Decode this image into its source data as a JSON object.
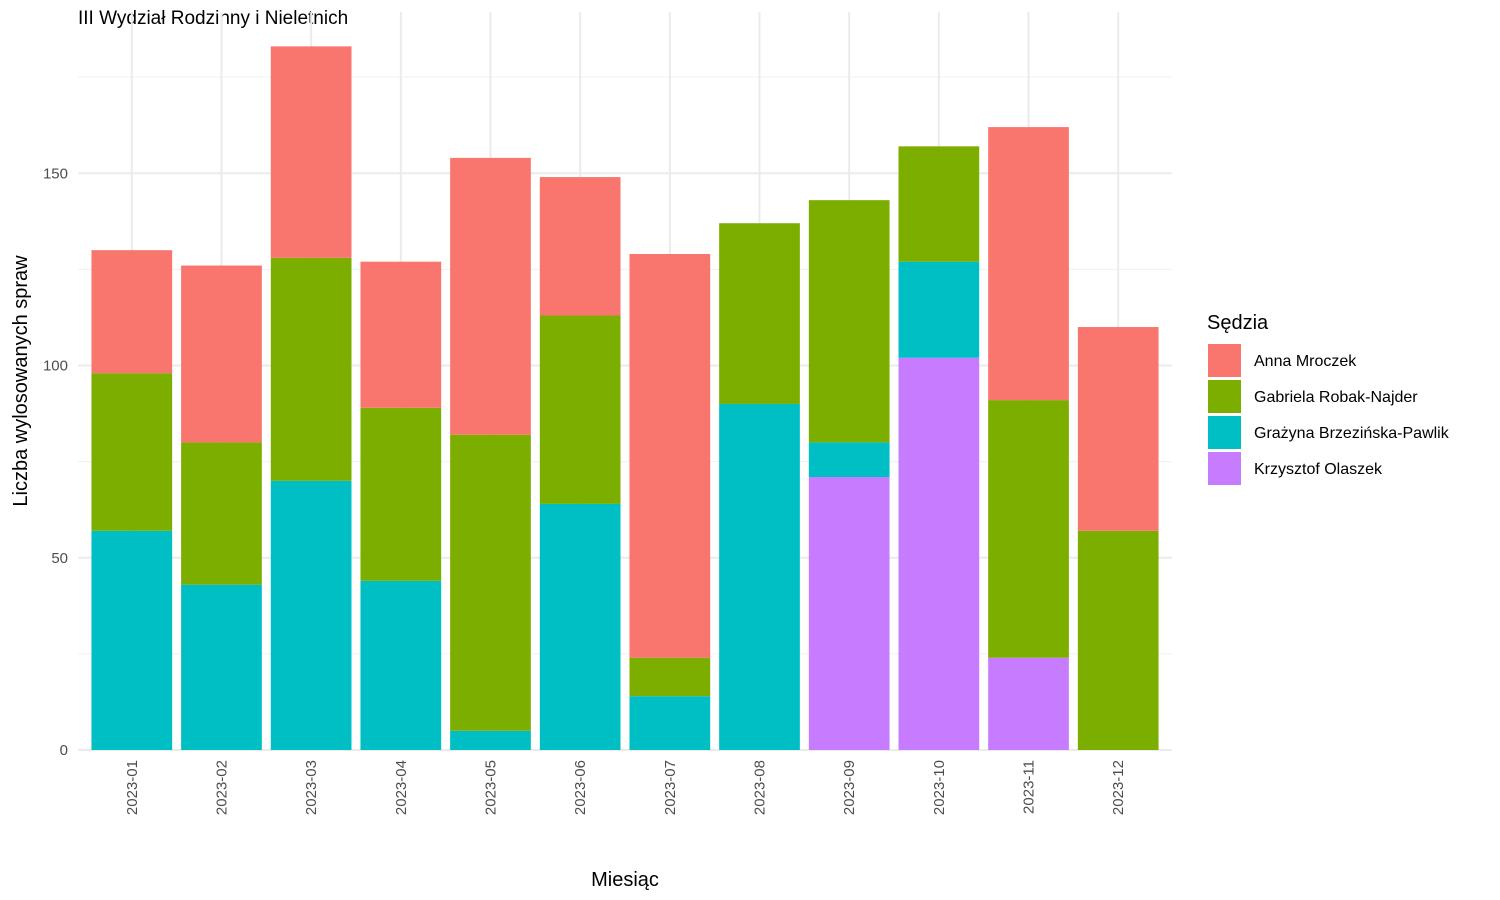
{
  "chart_data": {
    "type": "bar",
    "stacked": true,
    "title": "III Wydział Rodzinny i Nieletnich",
    "xlabel": "Miesiąc",
    "ylabel": "Liczba wylosowanych spraw",
    "ylim": [
      0,
      190
    ],
    "yticks": [
      "0",
      "50",
      "100",
      "150"
    ],
    "categories": [
      "2023-01",
      "2023-02",
      "2023-03",
      "2023-04",
      "2023-05",
      "2023-06",
      "2023-07",
      "2023-08",
      "2023-09",
      "2023-10",
      "2023-11",
      "2023-12"
    ],
    "legend_title": "Sędzia",
    "legend_position": "right",
    "grid": true,
    "series": [
      {
        "name": "Anna Mroczek",
        "color": "#F8766D",
        "values": [
          32,
          46,
          55,
          38,
          72,
          36,
          105,
          0,
          0,
          0,
          71,
          53
        ]
      },
      {
        "name": "Gabriela Robak-Najder",
        "color": "#7CAE00",
        "values": [
          41,
          37,
          58,
          45,
          77,
          49,
          10,
          47,
          63,
          30,
          67,
          57
        ]
      },
      {
        "name": "Grażyna Brzezińska-Pawlik",
        "color": "#00BFC4",
        "values": [
          57,
          43,
          70,
          44,
          5,
          64,
          14,
          90,
          9,
          25,
          0,
          0
        ]
      },
      {
        "name": "Krzysztof Olaszek",
        "color": "#C77CFF",
        "values": [
          0,
          0,
          0,
          0,
          0,
          0,
          0,
          0,
          71,
          102,
          24,
          0
        ]
      }
    ]
  }
}
